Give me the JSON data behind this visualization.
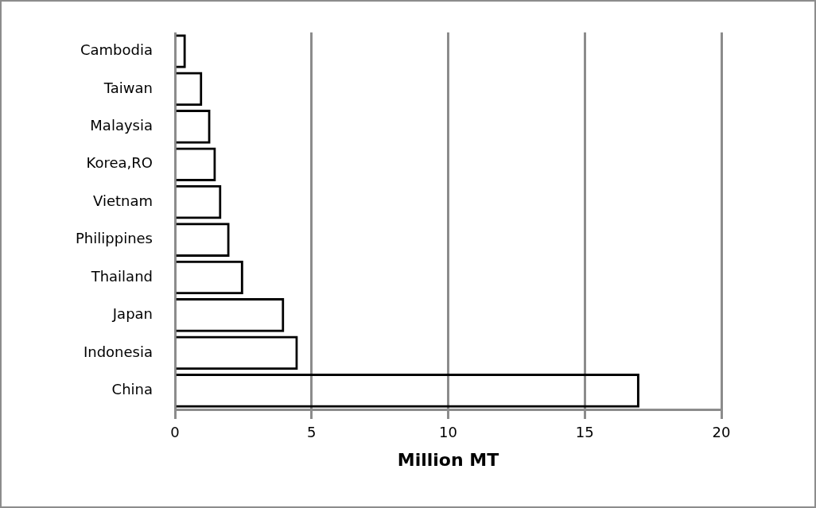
{
  "chart_data": {
    "type": "bar",
    "orientation": "horizontal",
    "categories": [
      "Cambodia",
      "Taiwan",
      "Malaysia",
      "Korea,RO",
      "Vietnam",
      "Philippines",
      "Thailand",
      "Japan",
      "Indonesia",
      "China"
    ],
    "values": [
      0.4,
      1.0,
      1.3,
      1.5,
      1.7,
      2.0,
      2.5,
      4.0,
      4.5,
      17.0
    ],
    "color": "#000000",
    "xlabel": "Million MT",
    "xlim": [
      0,
      20
    ],
    "xticks": [
      0,
      5,
      10,
      15,
      20
    ],
    "grid": "x"
  }
}
